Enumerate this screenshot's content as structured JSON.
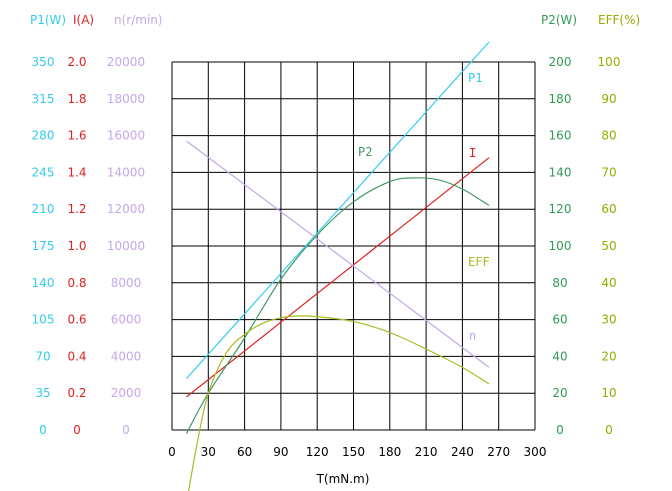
{
  "chart_data": {
    "type": "line",
    "xlabel": "T(mN.m)",
    "x_ticks": [
      "0",
      "30",
      "60",
      "90",
      "120",
      "150",
      "180",
      "210",
      "240",
      "270",
      "300"
    ],
    "xlim": [
      0,
      300
    ],
    "grid": true,
    "colors": {
      "P1": "#33ccee",
      "I": "#dd2222",
      "n": "#c4a8e8",
      "P2": "#449966",
      "EFF": "#aabb22",
      "P2_axis": "#339955",
      "EFF_axis": "#99aa00"
    },
    "axes": {
      "P1": {
        "header": "P1(W)",
        "ticks": [
          "350",
          "315",
          "280",
          "245",
          "210",
          "175",
          "140",
          "105",
          "70",
          "35",
          "0"
        ]
      },
      "I": {
        "header": "I(A)",
        "ticks": [
          "2.0",
          "1.8",
          "1.6",
          "1.4",
          "1.2",
          "1.0",
          "0.8",
          "0.6",
          "0.4",
          "0.2",
          "0"
        ]
      },
      "n": {
        "header": "n(r/min)",
        "ticks": [
          "20000",
          "18000",
          "16000",
          "14000",
          "12000",
          "10000",
          "8000",
          "6000",
          "4000",
          "2000",
          "0"
        ]
      },
      "P2": {
        "header": "P2(W)",
        "ticks": [
          "200",
          "180",
          "160",
          "140",
          "120",
          "100",
          "80",
          "60",
          "40",
          "20",
          "0"
        ]
      },
      "EFF": {
        "header": "EFF(%)",
        "ticks": [
          "100",
          "90",
          "80",
          "70",
          "60",
          "50",
          "40",
          "30",
          "20",
          "10",
          "0"
        ]
      }
    },
    "series": [
      {
        "name": "P1",
        "unit": "W",
        "x": [
          12,
          262
        ],
        "y": [
          49,
          369
        ]
      },
      {
        "name": "I",
        "unit": "A",
        "x": [
          12,
          262
        ],
        "y": [
          0.18,
          1.48
        ]
      },
      {
        "name": "n",
        "unit": "r/min",
        "x": [
          12,
          262
        ],
        "y": [
          15700,
          3400
        ]
      },
      {
        "name": "P2",
        "unit": "W",
        "x": [
          12,
          30,
          60,
          90,
          120,
          150,
          180,
          200,
          220,
          240,
          262
        ],
        "y": [
          -2,
          20,
          50,
          82,
          106,
          124,
          135,
          137,
          136,
          131,
          122
        ]
      },
      {
        "name": "EFF",
        "unit": "%",
        "x": [
          12,
          20,
          30,
          45,
          60,
          75,
          90,
          105,
          120,
          150,
          180,
          210,
          240,
          262
        ],
        "y": [
          -20,
          -5,
          10,
          21,
          26,
          29,
          30.5,
          31,
          30.8,
          29.5,
          26.5,
          22,
          17,
          12.5
        ]
      }
    ]
  }
}
